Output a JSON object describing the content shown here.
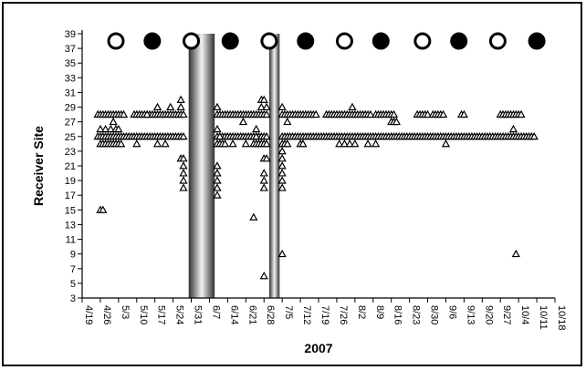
{
  "chart_data": {
    "type": "scatter",
    "xlabel": "2007",
    "ylabel": "Receiver Site",
    "x_ticks": [
      "4/19",
      "4/26",
      "5/3",
      "5/10",
      "5/17",
      "5/24",
      "5/31",
      "6/7",
      "6/14",
      "6/21",
      "6/28",
      "7/5",
      "7/12",
      "7/19",
      "7/26",
      "8/2",
      "8/9",
      "8/16",
      "8/23",
      "8/30",
      "9/6",
      "9/13",
      "9/20",
      "9/27",
      "10/4",
      "10/11",
      "10/18"
    ],
    "y_ticks": [
      3,
      5,
      7,
      9,
      11,
      13,
      15,
      17,
      19,
      21,
      23,
      25,
      27,
      29,
      31,
      33,
      35,
      37,
      39
    ],
    "xlim": [
      "2007-04-19",
      "2007-10-18"
    ],
    "ylim": [
      3,
      39
    ],
    "grid": false,
    "legend": "none",
    "colors": {
      "marker_stroke": "#000000",
      "marker_fill": "#ffffff",
      "filled_circle": "#000000",
      "band_edge": "#303030",
      "band_center": "#f2f2f2"
    },
    "moon_phase_markers": {
      "y": 38,
      "phases": [
        {
          "date": "2007-05-02",
          "phase": "full"
        },
        {
          "date": "2007-05-16",
          "phase": "new"
        },
        {
          "date": "2007-05-31",
          "phase": "full"
        },
        {
          "date": "2007-06-15",
          "phase": "new"
        },
        {
          "date": "2007-06-30",
          "phase": "full"
        },
        {
          "date": "2007-07-14",
          "phase": "new"
        },
        {
          "date": "2007-07-29",
          "phase": "full"
        },
        {
          "date": "2007-08-12",
          "phase": "new"
        },
        {
          "date": "2007-08-28",
          "phase": "full"
        },
        {
          "date": "2007-09-11",
          "phase": "new"
        },
        {
          "date": "2007-09-26",
          "phase": "full"
        },
        {
          "date": "2007-10-11",
          "phase": "new"
        }
      ]
    },
    "shaded_periods": [
      {
        "start": "2007-05-30",
        "end": "2007-06-09"
      },
      {
        "start": "2007-06-30",
        "end": "2007-07-04"
      }
    ],
    "series": [
      {
        "marker": "triangle-open",
        "line_segments": [
          {
            "y": 28,
            "start": "2007-04-25",
            "end": "2007-05-05"
          },
          {
            "y": 28,
            "start": "2007-05-09",
            "end": "2007-05-28"
          },
          {
            "y": 28,
            "start": "2007-06-10",
            "end": "2007-06-29"
          },
          {
            "y": 28,
            "start": "2007-07-05",
            "end": "2007-07-18"
          },
          {
            "y": 28,
            "start": "2007-07-22",
            "end": "2007-08-08"
          },
          {
            "y": 28,
            "start": "2007-08-10",
            "end": "2007-08-17"
          },
          {
            "y": 28,
            "start": "2007-08-26",
            "end": "2007-08-30"
          },
          {
            "y": 28,
            "start": "2007-09-01",
            "end": "2007-09-05"
          },
          {
            "y": 28,
            "start": "2007-09-12",
            "end": "2007-09-13"
          },
          {
            "y": 28,
            "start": "2007-09-27",
            "end": "2007-10-05"
          },
          {
            "y": 25,
            "start": "2007-04-25",
            "end": "2007-05-28"
          },
          {
            "y": 25,
            "start": "2007-06-10",
            "end": "2007-06-29"
          },
          {
            "y": 25,
            "start": "2007-07-05",
            "end": "2007-10-10"
          },
          {
            "y": 24,
            "start": "2007-04-26",
            "end": "2007-05-04"
          },
          {
            "y": 24,
            "start": "2007-06-10",
            "end": "2007-06-13"
          },
          {
            "y": 24,
            "start": "2007-06-24",
            "end": "2007-06-29"
          },
          {
            "y": 24,
            "start": "2007-07-05",
            "end": "2007-07-07"
          }
        ],
        "points": [
          {
            "x": "2007-04-26",
            "y": 15
          },
          {
            "x": "2007-04-27",
            "y": 15
          },
          {
            "x": "2007-04-26",
            "y": 26
          },
          {
            "x": "2007-04-28",
            "y": 26
          },
          {
            "x": "2007-04-30",
            "y": 26
          },
          {
            "x": "2007-05-02",
            "y": 26
          },
          {
            "x": "2007-05-01",
            "y": 27
          },
          {
            "x": "2007-05-03",
            "y": 26
          },
          {
            "x": "2007-05-10",
            "y": 24
          },
          {
            "x": "2007-05-14",
            "y": 28
          },
          {
            "x": "2007-05-18",
            "y": 24
          },
          {
            "x": "2007-05-18",
            "y": 29
          },
          {
            "x": "2007-05-21",
            "y": 24
          },
          {
            "x": "2007-05-23",
            "y": 29
          },
          {
            "x": "2007-05-27",
            "y": 30
          },
          {
            "x": "2007-05-27",
            "y": 29
          },
          {
            "x": "2007-05-27",
            "y": 22
          },
          {
            "x": "2007-05-28",
            "y": 21
          },
          {
            "x": "2007-05-28",
            "y": 20
          },
          {
            "x": "2007-05-28",
            "y": 19
          },
          {
            "x": "2007-05-28",
            "y": 18
          },
          {
            "x": "2007-05-28",
            "y": 22
          },
          {
            "x": "2007-06-10",
            "y": 29
          },
          {
            "x": "2007-06-10",
            "y": 26
          },
          {
            "x": "2007-06-10",
            "y": 21
          },
          {
            "x": "2007-06-10",
            "y": 20
          },
          {
            "x": "2007-06-10",
            "y": 19
          },
          {
            "x": "2007-06-10",
            "y": 18
          },
          {
            "x": "2007-06-10",
            "y": 17
          },
          {
            "x": "2007-06-11",
            "y": 25
          },
          {
            "x": "2007-06-16",
            "y": 24
          },
          {
            "x": "2007-06-20",
            "y": 27
          },
          {
            "x": "2007-06-21",
            "y": 24
          },
          {
            "x": "2007-06-24",
            "y": 14
          },
          {
            "x": "2007-06-25",
            "y": 25
          },
          {
            "x": "2007-06-25",
            "y": 26
          },
          {
            "x": "2007-06-27",
            "y": 30
          },
          {
            "x": "2007-06-27",
            "y": 29
          },
          {
            "x": "2007-06-28",
            "y": 30
          },
          {
            "x": "2007-06-28",
            "y": 22
          },
          {
            "x": "2007-06-28",
            "y": 20
          },
          {
            "x": "2007-06-28",
            "y": 19
          },
          {
            "x": "2007-06-28",
            "y": 18
          },
          {
            "x": "2007-06-28",
            "y": 6
          },
          {
            "x": "2007-06-29",
            "y": 29
          },
          {
            "x": "2007-06-29",
            "y": 22
          },
          {
            "x": "2007-07-05",
            "y": 29
          },
          {
            "x": "2007-07-05",
            "y": 23
          },
          {
            "x": "2007-07-05",
            "y": 22
          },
          {
            "x": "2007-07-05",
            "y": 21
          },
          {
            "x": "2007-07-05",
            "y": 20
          },
          {
            "x": "2007-07-05",
            "y": 19
          },
          {
            "x": "2007-07-05",
            "y": 18
          },
          {
            "x": "2007-07-05",
            "y": 9
          },
          {
            "x": "2007-07-07",
            "y": 27
          },
          {
            "x": "2007-07-12",
            "y": 24
          },
          {
            "x": "2007-07-13",
            "y": 24
          },
          {
            "x": "2007-07-27",
            "y": 24
          },
          {
            "x": "2007-07-29",
            "y": 24
          },
          {
            "x": "2007-07-31",
            "y": 24
          },
          {
            "x": "2007-08-01",
            "y": 29
          },
          {
            "x": "2007-08-02",
            "y": 24
          },
          {
            "x": "2007-08-07",
            "y": 24
          },
          {
            "x": "2007-08-10",
            "y": 24
          },
          {
            "x": "2007-08-16",
            "y": 27
          },
          {
            "x": "2007-08-17",
            "y": 27
          },
          {
            "x": "2007-08-18",
            "y": 27
          },
          {
            "x": "2007-09-06",
            "y": 24
          },
          {
            "x": "2007-10-02",
            "y": 26
          },
          {
            "x": "2007-10-03",
            "y": 9
          }
        ]
      }
    ]
  }
}
